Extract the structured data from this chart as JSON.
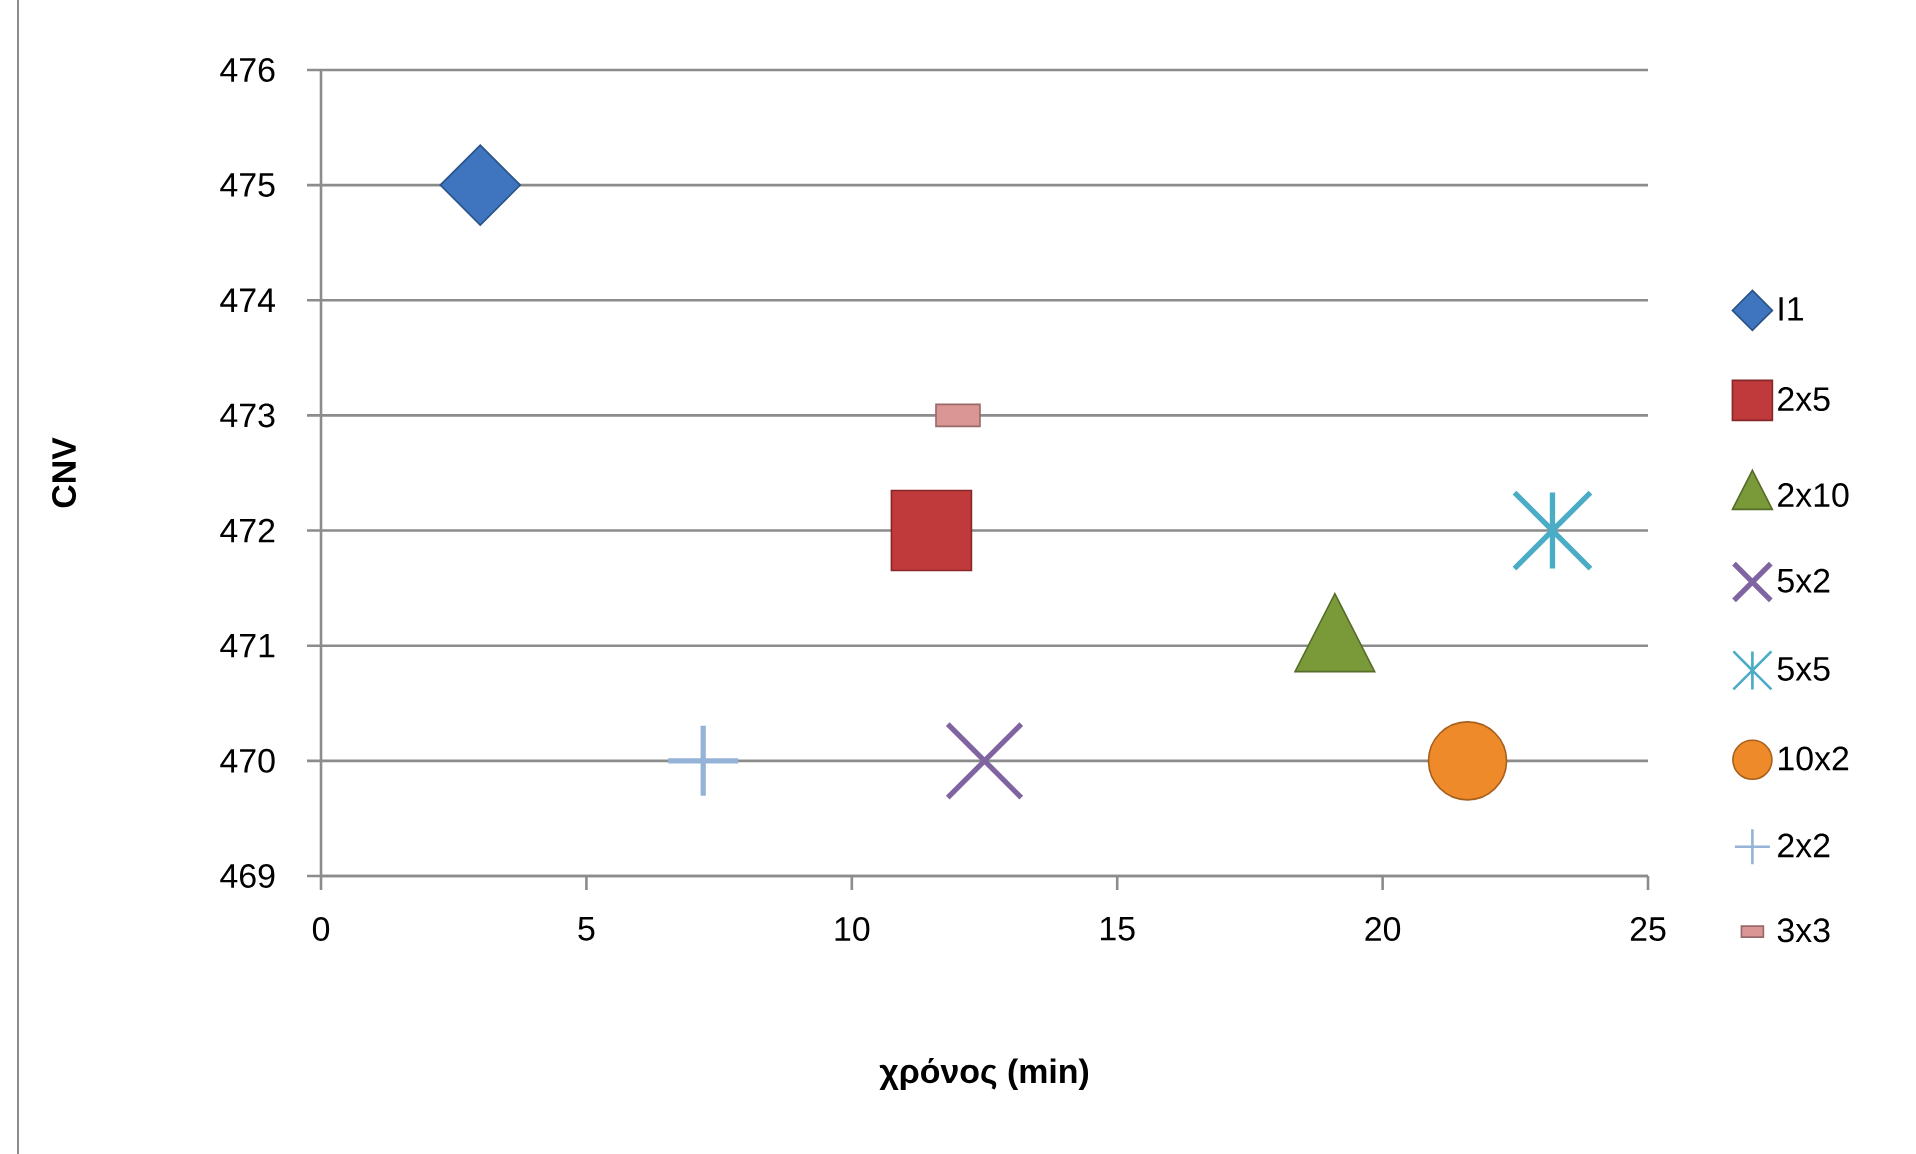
{
  "chart_data": {
    "type": "scatter",
    "xlabel": "χρόνος (min)",
    "ylabel": "CNV",
    "xlim": [
      0,
      25
    ],
    "ylim": [
      469,
      476
    ],
    "xticks": [
      0,
      5,
      10,
      15,
      20,
      25
    ],
    "yticks": [
      469,
      470,
      471,
      472,
      473,
      474,
      475,
      476
    ],
    "grid": "y",
    "legend": "right",
    "series": [
      {
        "name": "I1",
        "color": "#3e75be",
        "marker": "diamond",
        "x": [
          3
        ],
        "values": [
          475
        ]
      },
      {
        "name": "2x5",
        "color": "#c0393b",
        "marker": "square",
        "x": [
          11.5
        ],
        "values": [
          472
        ]
      },
      {
        "name": "2x10",
        "color": "#7a9a3a",
        "marker": "triangle",
        "x": [
          19.1
        ],
        "values": [
          471
        ]
      },
      {
        "name": "5x2",
        "color": "#8064a2",
        "marker": "cross",
        "x": [
          12.5
        ],
        "values": [
          470
        ]
      },
      {
        "name": "5x5",
        "color": "#4bacc6",
        "marker": "star",
        "x": [
          23.2
        ],
        "values": [
          472
        ]
      },
      {
        "name": "10x2",
        "color": "#ef8a2a",
        "marker": "circle",
        "x": [
          21.6
        ],
        "values": [
          470
        ]
      },
      {
        "name": "2x2",
        "color": "#95b3d7",
        "marker": "cross",
        "x": [
          7.2
        ],
        "values": [
          470
        ]
      },
      {
        "name": "3x3",
        "color": "#d99694",
        "marker": "square",
        "x": [
          12
        ],
        "values": [
          473
        ]
      }
    ]
  }
}
